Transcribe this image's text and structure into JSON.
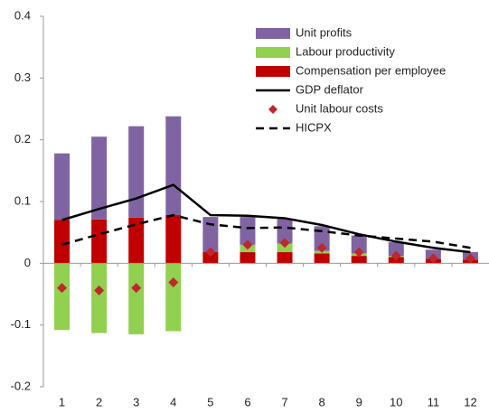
{
  "chart_data": {
    "type": "bar",
    "categories": [
      "1",
      "2",
      "3",
      "4",
      "5",
      "6",
      "7",
      "8",
      "9",
      "10",
      "11",
      "12"
    ],
    "series": [
      {
        "name": "Compensation per employee",
        "color": "#c00000",
        "mark": "bar",
        "values": [
          0.07,
          0.071,
          0.074,
          0.078,
          0.018,
          0.018,
          0.018,
          0.016,
          0.012,
          0.01,
          0.007,
          0.006
        ]
      },
      {
        "name": "Labour productivity",
        "color": "#92d050",
        "mark": "bar",
        "values": [
          -0.108,
          -0.113,
          -0.115,
          -0.11,
          0,
          0.012,
          0.014,
          0.004,
          0.004,
          0.002,
          0,
          0
        ]
      },
      {
        "name": "Unit profits",
        "color": "#8064a2",
        "mark": "bar",
        "values": [
          0.108,
          0.134,
          0.148,
          0.16,
          0.057,
          0.045,
          0.04,
          0.04,
          0.029,
          0.022,
          0.015,
          0.012
        ]
      },
      {
        "name": "GDP deflator",
        "color": "#000000",
        "mark": "line",
        "values": [
          0.07,
          0.088,
          0.105,
          0.127,
          0.078,
          0.077,
          0.073,
          0.062,
          0.047,
          0.035,
          0.025,
          0.018
        ]
      },
      {
        "name": "Unit labour costs",
        "color": "#c0272d",
        "mark": "diamond",
        "values": [
          -0.04,
          -0.044,
          -0.04,
          -0.031,
          0.018,
          0.03,
          0.033,
          0.025,
          0.018,
          0.012,
          0.008,
          0.008
        ]
      },
      {
        "name": "HICPX",
        "color": "#000000",
        "mark": "dashed",
        "values": [
          0.03,
          0.047,
          0.063,
          0.078,
          0.063,
          0.057,
          0.058,
          0.052,
          0.045,
          0.04,
          0.035,
          0.025
        ]
      }
    ],
    "legend_order": [
      2,
      1,
      0,
      3,
      4,
      5
    ],
    "ylim": [
      -0.2,
      0.4
    ],
    "yticks": [
      -0.2,
      -0.1,
      0,
      0.1,
      0.2,
      0.3,
      0.4
    ],
    "grid": false
  }
}
